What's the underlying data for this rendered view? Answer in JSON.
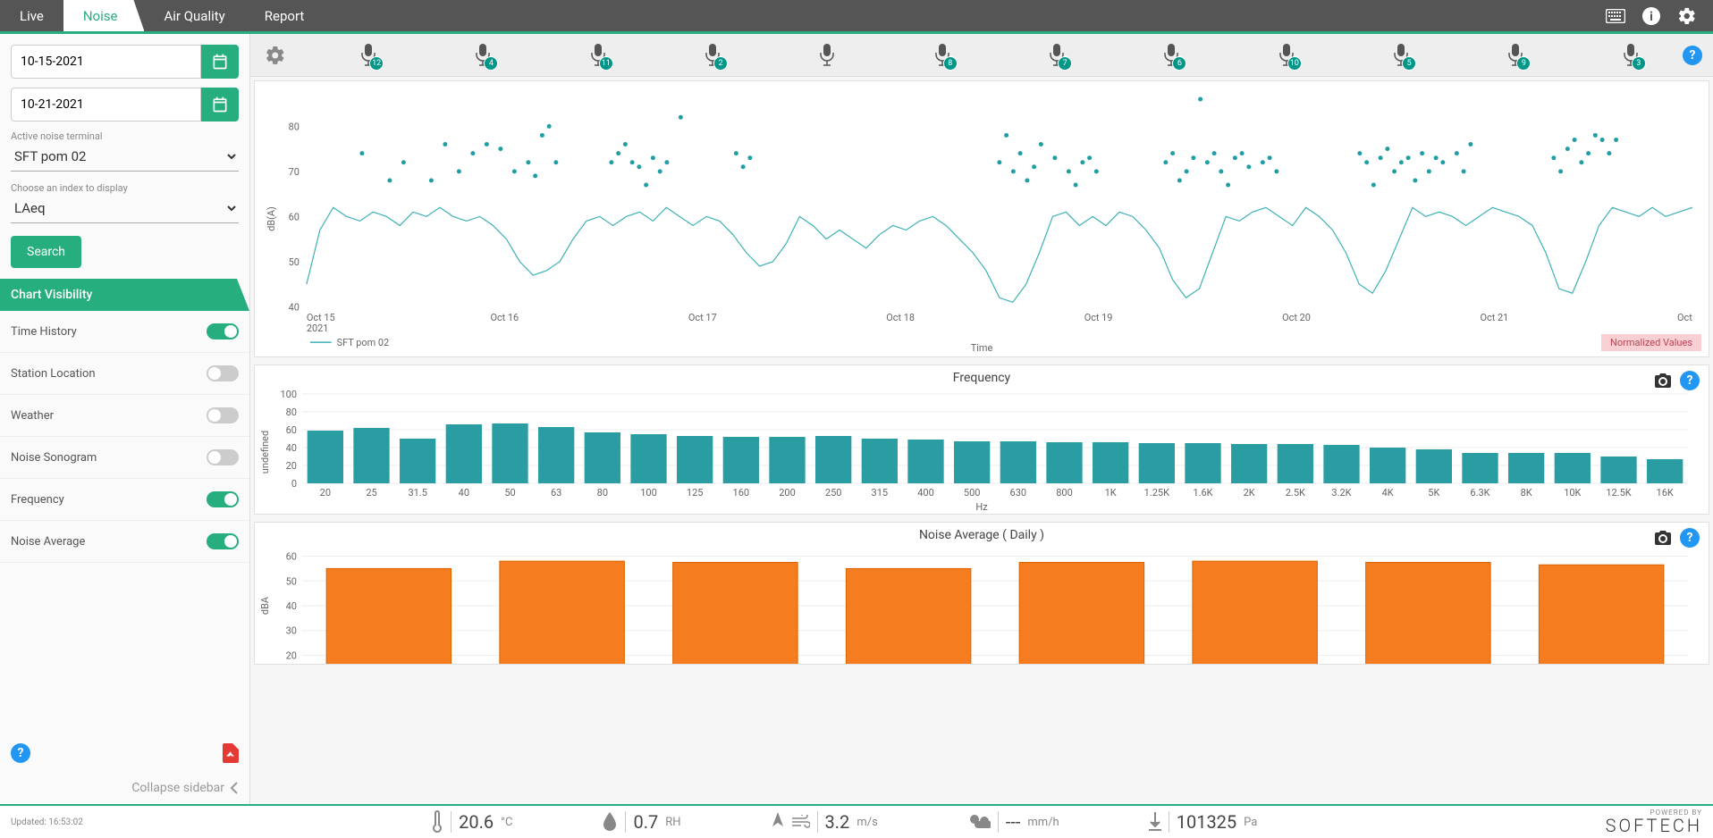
{
  "nav": {
    "tabs": [
      "Live",
      "Noise",
      "Air Quality",
      "Report"
    ],
    "active": 1
  },
  "sidebar": {
    "date_from": "10-15-2021",
    "date_to": "10-21-2021",
    "terminal_label": "Active noise terminal",
    "terminal_value": "SFT pom 02",
    "index_label": "Choose an index to display",
    "index_value": "LAeq",
    "search": "Search",
    "section": "Chart Visibility",
    "toggles": [
      {
        "label": "Time History",
        "on": true
      },
      {
        "label": "Station Location",
        "on": false
      },
      {
        "label": "Weather",
        "on": false
      },
      {
        "label": "Noise Sonogram",
        "on": false
      },
      {
        "label": "Frequency",
        "on": true
      },
      {
        "label": "Noise Average",
        "on": true
      }
    ],
    "collapse": "Collapse sidebar"
  },
  "mics": [
    12,
    4,
    11,
    2,
    null,
    8,
    7,
    6,
    10,
    5,
    9,
    3
  ],
  "time_chart": {
    "ylabel": "dB(A)",
    "xlabel": "Time",
    "yticks": [
      40,
      50,
      60,
      70,
      80
    ],
    "ylim": [
      40,
      88
    ],
    "xticks": [
      "Oct 15",
      "Oct 16",
      "Oct 17",
      "Oct 18",
      "Oct 19",
      "Oct 20",
      "Oct 21",
      "Oct"
    ],
    "xsub": "2021",
    "legend": "SFT pom 02",
    "line_color": "#3db1b5",
    "scatter_color": "#1f9ea3",
    "normalized": "Normalized Values",
    "line": [
      45,
      57,
      62,
      60,
      59,
      61,
      60,
      58,
      61,
      60,
      62,
      60,
      59,
      60,
      58,
      55,
      50,
      47,
      48,
      50,
      55,
      59,
      60,
      58,
      60,
      61,
      59,
      62,
      60,
      58,
      60,
      59,
      56,
      52,
      49,
      50,
      54,
      60,
      58,
      55,
      57,
      55,
      53,
      56,
      58,
      57,
      59,
      60,
      58,
      55,
      52,
      48,
      42,
      41,
      45,
      52,
      60,
      61,
      58,
      60,
      58,
      61,
      60,
      57,
      53,
      46,
      42,
      44,
      52,
      60,
      59,
      61,
      62,
      60,
      58,
      62,
      60,
      57,
      52,
      45,
      43,
      48,
      55,
      62,
      60,
      61,
      60,
      58,
      60,
      62,
      61,
      60,
      58,
      52,
      44,
      43,
      50,
      58,
      62,
      61,
      60,
      62,
      60,
      61,
      62
    ],
    "scatter": [
      [
        0.04,
        74
      ],
      [
        0.06,
        68
      ],
      [
        0.07,
        72
      ],
      [
        0.09,
        68
      ],
      [
        0.1,
        76
      ],
      [
        0.11,
        70
      ],
      [
        0.12,
        74
      ],
      [
        0.13,
        76
      ],
      [
        0.14,
        75
      ],
      [
        0.15,
        70
      ],
      [
        0.16,
        72
      ],
      [
        0.165,
        69
      ],
      [
        0.17,
        78
      ],
      [
        0.175,
        80
      ],
      [
        0.18,
        72
      ],
      [
        0.22,
        72
      ],
      [
        0.225,
        74
      ],
      [
        0.23,
        76
      ],
      [
        0.235,
        72
      ],
      [
        0.24,
        71
      ],
      [
        0.245,
        67
      ],
      [
        0.25,
        73
      ],
      [
        0.255,
        70
      ],
      [
        0.26,
        72
      ],
      [
        0.27,
        82
      ],
      [
        0.31,
        74
      ],
      [
        0.315,
        71
      ],
      [
        0.32,
        73
      ],
      [
        0.5,
        72
      ],
      [
        0.505,
        78
      ],
      [
        0.51,
        70
      ],
      [
        0.515,
        74
      ],
      [
        0.52,
        68
      ],
      [
        0.525,
        71
      ],
      [
        0.53,
        76
      ],
      [
        0.54,
        73
      ],
      [
        0.55,
        70
      ],
      [
        0.555,
        67
      ],
      [
        0.56,
        72
      ],
      [
        0.565,
        73
      ],
      [
        0.57,
        70
      ],
      [
        0.62,
        72
      ],
      [
        0.625,
        74
      ],
      [
        0.63,
        68
      ],
      [
        0.635,
        70
      ],
      [
        0.64,
        73
      ],
      [
        0.645,
        86
      ],
      [
        0.65,
        72
      ],
      [
        0.655,
        74
      ],
      [
        0.66,
        70
      ],
      [
        0.665,
        67
      ],
      [
        0.67,
        73
      ],
      [
        0.675,
        74
      ],
      [
        0.68,
        71
      ],
      [
        0.69,
        72
      ],
      [
        0.695,
        73
      ],
      [
        0.7,
        70
      ],
      [
        0.76,
        74
      ],
      [
        0.765,
        72
      ],
      [
        0.77,
        67
      ],
      [
        0.775,
        73
      ],
      [
        0.78,
        75
      ],
      [
        0.785,
        70
      ],
      [
        0.79,
        72
      ],
      [
        0.795,
        73
      ],
      [
        0.8,
        68
      ],
      [
        0.805,
        74
      ],
      [
        0.81,
        70
      ],
      [
        0.815,
        73
      ],
      [
        0.82,
        72
      ],
      [
        0.83,
        74
      ],
      [
        0.835,
        70
      ],
      [
        0.84,
        76
      ],
      [
        0.9,
        73
      ],
      [
        0.905,
        70
      ],
      [
        0.91,
        75
      ],
      [
        0.915,
        77
      ],
      [
        0.92,
        72
      ],
      [
        0.925,
        74
      ],
      [
        0.93,
        78
      ],
      [
        0.935,
        77
      ],
      [
        0.94,
        74
      ],
      [
        0.945,
        77
      ]
    ]
  },
  "freq_chart": {
    "title": "Frequency",
    "ylabel": "undefined",
    "xlabel": "Hz",
    "yticks": [
      0,
      20,
      40,
      60,
      80,
      100
    ],
    "bar_color": "#2a9da3",
    "categories": [
      "20",
      "25",
      "31.5",
      "40",
      "50",
      "63",
      "80",
      "100",
      "125",
      "160",
      "200",
      "250",
      "315",
      "400",
      "500",
      "630",
      "800",
      "1K",
      "1.25K",
      "1.6K",
      "2K",
      "2.5K",
      "3.2K",
      "4K",
      "5K",
      "6.3K",
      "8K",
      "10K",
      "12.5K",
      "16K"
    ],
    "values": [
      59,
      62,
      50,
      66,
      67,
      63,
      57,
      55,
      53,
      52,
      52,
      53,
      50,
      49,
      47,
      47,
      46,
      46,
      45,
      45,
      44,
      44,
      43,
      40,
      38,
      34,
      34,
      34,
      30,
      27
    ]
  },
  "avg_chart": {
    "title": "Noise Average ( Daily )",
    "ylabel": "dBA",
    "yticks": [
      20,
      30,
      40,
      50,
      60
    ],
    "ylim": [
      18,
      62
    ],
    "bar_color": "#f57c1f",
    "border_color": "#d96500",
    "values": [
      55,
      58,
      57.5,
      55,
      57.5,
      58,
      57.5,
      56.5
    ]
  },
  "footer": {
    "updated": "Updated: 16:53:02",
    "temp": {
      "val": "20.6",
      "unit": "°C"
    },
    "humidity": {
      "val": "0.7",
      "unit": "RH"
    },
    "wind": {
      "val": "3.2",
      "unit": "m/s"
    },
    "rain": {
      "val": "---",
      "unit": "mm/h"
    },
    "pressure": {
      "val": "101325",
      "unit": "Pa"
    },
    "powered": "POWERED BY",
    "logo": "SOFTECH"
  }
}
